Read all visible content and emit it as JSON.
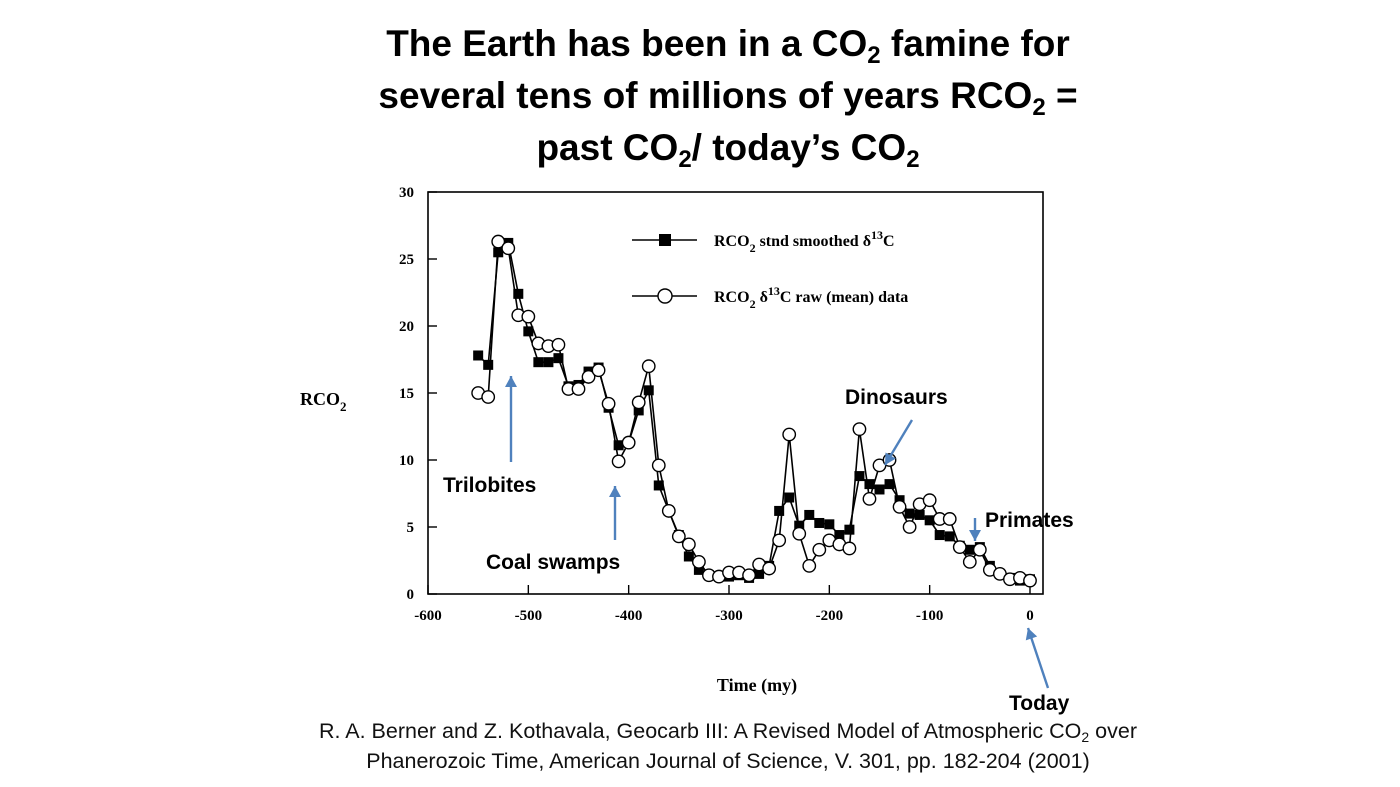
{
  "slide": {
    "title_line1_a": "The Earth has been in a CO",
    "title_line1_b": "2",
    "title_line1_c": " famine for",
    "title_line2_a": "several tens of millions of years RCO",
    "title_line2_b": "2",
    "title_line2_c": " =",
    "title_line3_a": "past CO",
    "title_line3_b": "2",
    "title_line3_c": "/ today’s CO",
    "title_line3_d": "2",
    "citation_line1_a": "R. A. Berner and Z. Kothavala, Geocarb III: A Revised Model of Atmospheric CO",
    "citation_line1_b": "2",
    "citation_line1_c": " over",
    "citation_line2": "Phanerozoic Time,  American Journal of Science, V. 301, pp. 182-204 (2001)"
  },
  "annotations": {
    "trilobites": "Trilobites",
    "coal_swamps": "Coal swamps",
    "dinosaurs": "Dinosaurs",
    "primates": "Primates",
    "today": "Today"
  },
  "colors": {
    "arrow": "#4f81bd",
    "series": "#000000"
  },
  "chart_data": {
    "type": "line",
    "xlabel": "Time  (my)",
    "ylabel_main": "RCO",
    "ylabel_sub": "2",
    "xlim": [
      -600,
      0
    ],
    "ylim": [
      0,
      30
    ],
    "xticks": [
      -600,
      -500,
      -400,
      -300,
      -200,
      -100,
      0
    ],
    "yticks": [
      0,
      5,
      10,
      15,
      20,
      25,
      30
    ],
    "grid": false,
    "legend_position": "top-right",
    "series": [
      {
        "name_main": "RCO",
        "name_sub": "2",
        "name_mid": " stnd smoothed δ",
        "name_sup": "13",
        "name_end": "C",
        "marker": "filled-square",
        "x": [
          -550,
          -540,
          -530,
          -520,
          -510,
          -500,
          -490,
          -480,
          -470,
          -460,
          -450,
          -440,
          -430,
          -420,
          -410,
          -400,
          -390,
          -380,
          -370,
          -360,
          -350,
          -340,
          -330,
          -320,
          -310,
          -300,
          -290,
          -280,
          -270,
          -260,
          -250,
          -240,
          -230,
          -220,
          -210,
          -200,
          -190,
          -180,
          -170,
          -160,
          -150,
          -140,
          -130,
          -120,
          -110,
          -100,
          -90,
          -80,
          -70,
          -60,
          -50,
          -40,
          -30,
          -20,
          -10,
          0
        ],
        "y": [
          17.8,
          17.1,
          25.5,
          26.2,
          22.4,
          19.6,
          17.3,
          17.3,
          17.6,
          15.5,
          15.6,
          16.6,
          16.9,
          13.9,
          11.1,
          11.3,
          13.7,
          15.2,
          8.1,
          6.2,
          4.4,
          2.8,
          1.8,
          1.4,
          1.3,
          1.3,
          1.4,
          1.2,
          1.5,
          2.1,
          6.2,
          7.2,
          5.1,
          5.9,
          5.3,
          5.2,
          4.4,
          4.8,
          8.8,
          8.2,
          7.8,
          8.2,
          7.0,
          6.0,
          5.9,
          5.5,
          4.4,
          4.3,
          3.6,
          3.3,
          3.5,
          2.1,
          1.5,
          1.2,
          1.0,
          1.1
        ]
      },
      {
        "name_main": "RCO",
        "name_sub": "2",
        "name_mid": " δ",
        "name_sup": "13",
        "name_end": "C raw (mean) data",
        "marker": "open-circle",
        "x": [
          -550,
          -540,
          -530,
          -520,
          -510,
          -500,
          -490,
          -480,
          -470,
          -460,
          -450,
          -440,
          -430,
          -420,
          -410,
          -400,
          -390,
          -380,
          -370,
          -360,
          -350,
          -340,
          -330,
          -320,
          -310,
          -300,
          -290,
          -280,
          -270,
          -260,
          -250,
          -240,
          -230,
          -220,
          -210,
          -200,
          -190,
          -180,
          -170,
          -160,
          -150,
          -140,
          -130,
          -120,
          -110,
          -100,
          -90,
          -80,
          -70,
          -60,
          -50,
          -40,
          -30,
          -20,
          -10,
          0
        ],
        "y": [
          15.0,
          14.7,
          26.3,
          25.8,
          20.8,
          20.7,
          18.7,
          18.5,
          18.6,
          15.3,
          15.3,
          16.2,
          16.7,
          14.2,
          9.9,
          11.3,
          14.3,
          17.0,
          9.6,
          6.2,
          4.3,
          3.7,
          2.4,
          1.4,
          1.3,
          1.6,
          1.6,
          1.4,
          2.2,
          1.9,
          4.0,
          11.9,
          4.5,
          2.1,
          3.3,
          4.0,
          3.7,
          3.4,
          12.3,
          7.1,
          9.6,
          10.0,
          6.5,
          5.0,
          6.7,
          7.0,
          5.6,
          5.6,
          3.5,
          2.4,
          3.3,
          1.8,
          1.5,
          1.1,
          1.2,
          1.0
        ]
      }
    ]
  }
}
